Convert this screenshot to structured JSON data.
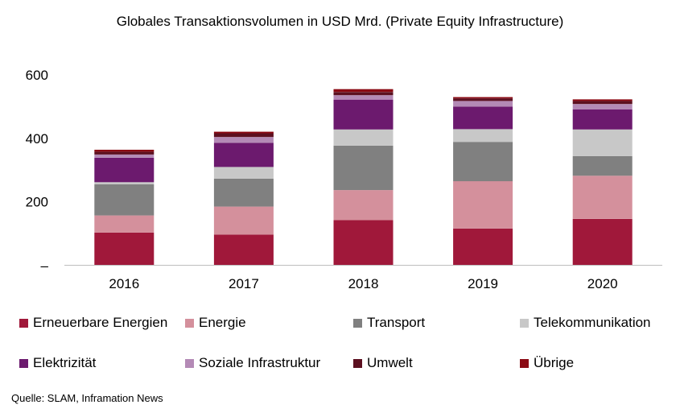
{
  "title": "Globales Transaktionsvolumen in USD Mrd. (Private Equity Infrastructure)",
  "source": "Quelle: SLAM, Inframation News",
  "chart_data": {
    "type": "bar",
    "stacked": true,
    "title": "Globales Transaktionsvolumen in USD Mrd. (Private Equity Infrastructure)",
    "categories": [
      "2016",
      "2017",
      "2018",
      "2019",
      "2020"
    ],
    "ylim": [
      0,
      600
    ],
    "yticks": [
      0,
      200,
      400,
      600
    ],
    "ytick_labels": [
      "–",
      "200",
      "400",
      "600"
    ],
    "grid": false,
    "legend_position": "bottom",
    "series": [
      {
        "name": "Erneuerbare Energien",
        "color": "#A0183A",
        "values": [
          103,
          97,
          142,
          116,
          146
        ]
      },
      {
        "name": "Energie",
        "color": "#D4909C",
        "values": [
          54,
          88,
          95,
          149,
          136
        ]
      },
      {
        "name": "Transport",
        "color": "#808080",
        "values": [
          98,
          88,
          140,
          124,
          62
        ]
      },
      {
        "name": "Telekommunikation",
        "color": "#C8C8C8",
        "values": [
          7,
          37,
          51,
          40,
          84
        ]
      },
      {
        "name": "Elektrizität",
        "color": "#6C1A6E",
        "values": [
          77,
          76,
          94,
          71,
          63
        ]
      },
      {
        "name": "Soziale Infrastruktur",
        "color": "#B48AB6",
        "values": [
          10,
          18,
          14,
          18,
          17
        ]
      },
      {
        "name": "Umwelt",
        "color": "#5C1020",
        "values": [
          9,
          12,
          10,
          8,
          10
        ]
      },
      {
        "name": "Übrige",
        "color": "#8B0A14",
        "values": [
          6,
          5,
          9,
          4,
          5
        ]
      }
    ]
  }
}
